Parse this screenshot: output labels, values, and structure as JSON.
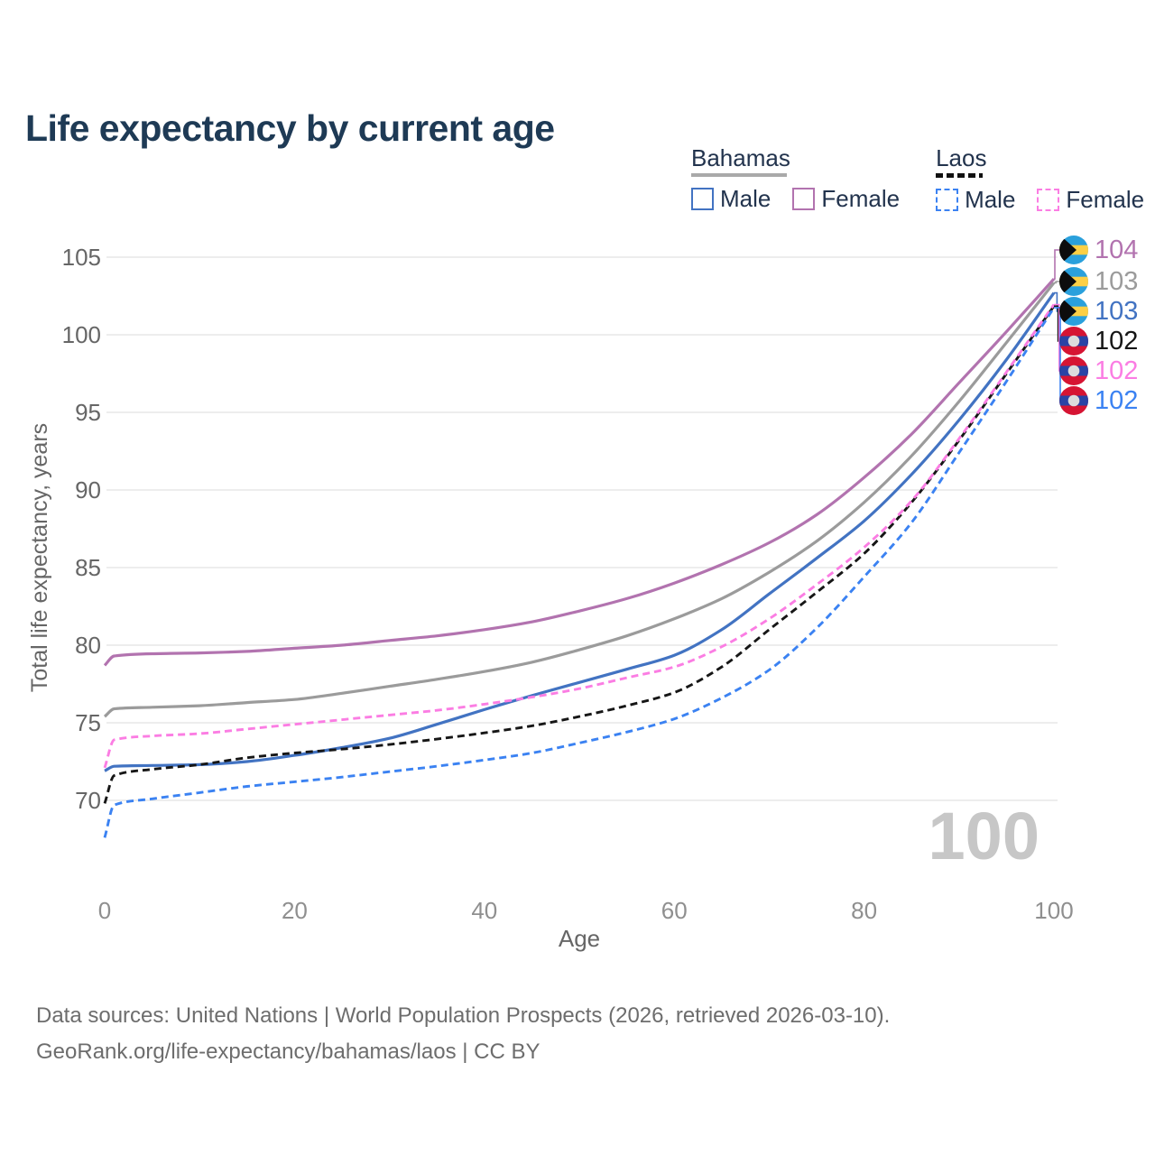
{
  "title": "Life expectancy by current age",
  "watermark": "100",
  "legend": {
    "bahamas": {
      "label": "Bahamas",
      "male": "Male",
      "female": "Female"
    },
    "laos": {
      "label": "Laos",
      "male": "Male",
      "female": "Female"
    }
  },
  "colors": {
    "bahamas_female": "#b273af",
    "bahamas_both": "#9b9b9b",
    "bahamas_male": "#4273c2",
    "laos_both": "#161616",
    "laos_female": "#fb7de3",
    "laos_male": "#3b82f2",
    "grid": "#e7e7e7",
    "title_text": "#1e3a55",
    "y_tick_text": "#666666",
    "x_tick_text": "#8f8f8f",
    "watermark_text": "#c7c7c7",
    "footer_text": "#6d6d6d",
    "flag_bahamas_aqua": "#2aa0dc",
    "flag_bahamas_gold": "#fccf45",
    "flag_black": "#0d0d0d",
    "flag_laos_red": "#d61433",
    "flag_laos_blue": "#2a43a5",
    "flag_laos_white": "#dcdcdc"
  },
  "end_labels": [
    {
      "flag": "bahamas",
      "value": "104",
      "series": "bahamas_female"
    },
    {
      "flag": "bahamas",
      "value": "103",
      "series": "bahamas_both"
    },
    {
      "flag": "bahamas",
      "value": "103",
      "series": "bahamas_male"
    },
    {
      "flag": "laos",
      "value": "102",
      "series": "laos_both"
    },
    {
      "flag": "laos",
      "value": "102",
      "series": "laos_female"
    },
    {
      "flag": "laos",
      "value": "102",
      "series": "laos_male"
    }
  ],
  "chart_data": {
    "type": "line",
    "title": "Life expectancy by current age",
    "xlabel": "Age",
    "ylabel": "Total life expectancy, years",
    "x_ticks": [
      0,
      20,
      40,
      60,
      80,
      100
    ],
    "y_ticks": [
      105,
      100,
      95,
      90,
      85,
      80,
      75,
      70
    ],
    "xlim": [
      0,
      100
    ],
    "ylim": [
      66.5,
      106
    ],
    "grid": "horizontal",
    "x": [
      0,
      1,
      5,
      10,
      15,
      20,
      25,
      30,
      35,
      40,
      45,
      50,
      55,
      60,
      65,
      70,
      75,
      80,
      85,
      90,
      95,
      100
    ],
    "series": [
      {
        "name": "Bahamas Female",
        "key": "bahamas_female",
        "style": "solid",
        "values": [
          78.7,
          79.3,
          79.45,
          79.5,
          79.6,
          79.8,
          80.0,
          80.3,
          80.6,
          81.0,
          81.5,
          82.2,
          83.0,
          84.0,
          85.2,
          86.6,
          88.4,
          90.8,
          93.6,
          96.9,
          100.2,
          103.6
        ]
      },
      {
        "name": "Bahamas Both sexes",
        "key": "bahamas_both",
        "style": "solid",
        "values": [
          75.4,
          75.9,
          76.0,
          76.1,
          76.3,
          76.5,
          76.9,
          77.35,
          77.8,
          78.3,
          78.9,
          79.7,
          80.6,
          81.7,
          83.0,
          84.7,
          86.7,
          89.2,
          92.2,
          95.7,
          99.5,
          103.35
        ]
      },
      {
        "name": "Bahamas Male",
        "key": "bahamas_male",
        "style": "solid",
        "values": [
          71.9,
          72.2,
          72.25,
          72.3,
          72.5,
          72.9,
          73.4,
          74.0,
          74.9,
          75.85,
          76.75,
          77.6,
          78.45,
          79.35,
          81.0,
          83.3,
          85.6,
          88.0,
          91.0,
          94.5,
          98.4,
          102.7
        ]
      },
      {
        "name": "Laos Both sexes",
        "key": "laos_both",
        "style": "dashed",
        "values": [
          69.8,
          71.6,
          72.0,
          72.3,
          72.75,
          73.05,
          73.3,
          73.6,
          73.95,
          74.35,
          74.8,
          75.4,
          76.1,
          76.95,
          78.6,
          81.0,
          83.4,
          85.9,
          89.2,
          93.2,
          97.5,
          101.85
        ]
      },
      {
        "name": "Laos Female",
        "key": "laos_female",
        "style": "dashed",
        "values": [
          72.1,
          73.9,
          74.15,
          74.3,
          74.6,
          74.9,
          75.2,
          75.5,
          75.8,
          76.2,
          76.65,
          77.2,
          77.9,
          78.6,
          79.9,
          81.7,
          83.9,
          86.3,
          89.3,
          93.3,
          97.6,
          101.95
        ]
      },
      {
        "name": "Laos Male",
        "key": "laos_male",
        "style": "dashed",
        "values": [
          67.6,
          69.7,
          70.1,
          70.5,
          70.9,
          71.2,
          71.5,
          71.85,
          72.2,
          72.6,
          73.05,
          73.7,
          74.4,
          75.25,
          76.6,
          78.4,
          81.1,
          84.4,
          87.9,
          92.4,
          97.0,
          101.75
        ]
      }
    ],
    "legend_position": "top-right"
  },
  "footer": {
    "line1": "Data sources: United Nations | World Population Prospects (2026, retrieved 2026-03-10).",
    "line2": "GeoRank.org/life-expectancy/bahamas/laos | CC BY"
  }
}
